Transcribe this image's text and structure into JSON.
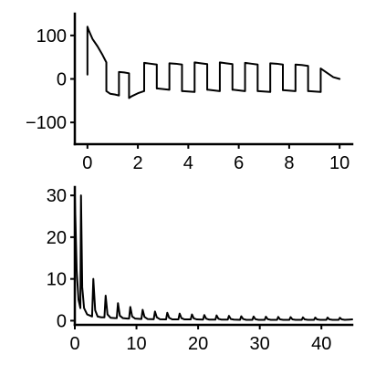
{
  "chart_data": [
    {
      "type": "line",
      "title": "",
      "xlabel": "",
      "ylabel": "",
      "xlim": [
        -0.5,
        10.5
      ],
      "ylim": [
        -150,
        150
      ],
      "xticks": [
        0,
        2,
        4,
        6,
        8,
        10
      ],
      "yticks": [
        100,
        0,
        -100
      ],
      "ytick_labels": [
        "100",
        "0",
        "−100"
      ],
      "grid": false,
      "series": [
        {
          "color": "#000000",
          "x": [
            0.0,
            0.0,
            0.05,
            0.2,
            0.4,
            0.6,
            0.75,
            0.75,
            0.9,
            1.1,
            1.25,
            1.25,
            1.45,
            1.65,
            1.65,
            1.75,
            2.0,
            2.25,
            2.25,
            2.5,
            2.75,
            2.75,
            2.8,
            3.25,
            3.25,
            3.5,
            3.75,
            3.75,
            3.8,
            4.25,
            4.25,
            4.5,
            4.75,
            4.75,
            4.8,
            5.25,
            5.25,
            5.5,
            5.75,
            5.75,
            5.8,
            6.25,
            6.25,
            6.5,
            6.75,
            6.75,
            6.8,
            7.25,
            7.25,
            7.5,
            7.75,
            7.75,
            7.8,
            8.25,
            8.25,
            8.5,
            8.75,
            8.75,
            8.8,
            9.25,
            9.25,
            9.5,
            9.75,
            10.0
          ],
          "y": [
            10,
            120,
            112,
            92,
            75,
            55,
            38,
            -28,
            -34,
            -36,
            -38,
            16,
            15,
            13,
            -44,
            -40,
            -33,
            -28,
            37,
            35,
            33,
            -22,
            -22,
            -25,
            36,
            35,
            33,
            -28,
            -28,
            -30,
            38,
            36,
            34,
            -25,
            -25,
            -28,
            38,
            36,
            34,
            -25,
            -25,
            -28,
            37,
            35,
            33,
            -28,
            -28,
            -30,
            36,
            35,
            33,
            -26,
            -26,
            -28,
            33,
            32,
            30,
            -28,
            -28,
            -30,
            24,
            14,
            4,
            0
          ]
        }
      ]
    },
    {
      "type": "line",
      "title": "",
      "xlabel": "",
      "ylabel": "",
      "xlim": [
        0,
        45
      ],
      "ylim": [
        -1,
        32
      ],
      "xticks": [
        0,
        10,
        20,
        30,
        40
      ],
      "yticks": [
        30,
        20,
        10,
        0
      ],
      "grid": false,
      "series": [
        {
          "color": "#000000",
          "x": [
            0.0,
            0.3,
            0.6,
            0.9,
            1.0,
            1.2,
            1.5,
            2.0,
            2.5,
            2.8,
            3.0,
            3.3,
            3.7,
            4.3,
            4.8,
            5.0,
            5.3,
            5.8,
            6.5,
            6.8,
            7.0,
            7.3,
            7.8,
            8.5,
            8.8,
            9.0,
            9.3,
            9.8,
            10.8,
            11.0,
            11.3,
            11.8,
            12.8,
            13.0,
            13.3,
            13.8,
            14.8,
            15.0,
            15.3,
            15.8,
            16.8,
            17.0,
            17.3,
            17.8,
            18.8,
            19.0,
            19.3,
            19.8,
            20.8,
            21.0,
            21.3,
            21.8,
            22.8,
            23.0,
            23.3,
            23.8,
            24.8,
            25.0,
            25.3,
            25.8,
            26.8,
            27.0,
            27.3,
            27.8,
            28.8,
            29.0,
            29.3,
            29.8,
            30.8,
            31.0,
            31.3,
            31.8,
            32.8,
            33.0,
            33.3,
            33.8,
            34.8,
            35.0,
            35.3,
            35.8,
            36.8,
            37.0,
            37.3,
            37.8,
            38.8,
            39.0,
            39.3,
            39.8,
            40.8,
            41.0,
            41.3,
            41.8,
            42.8,
            43.0,
            43.3,
            43.8,
            45.0
          ],
          "y": [
            30,
            12,
            5,
            3,
            30,
            8,
            3,
            1.5,
            1.2,
            1.0,
            10,
            2.5,
            1.0,
            0.8,
            0.8,
            6,
            1.5,
            0.7,
            0.6,
            0.6,
            4.2,
            1.2,
            0.6,
            0.5,
            0.5,
            3.3,
            1.0,
            0.5,
            0.4,
            2.6,
            0.9,
            0.4,
            0.35,
            2.2,
            0.8,
            0.35,
            0.3,
            1.9,
            0.7,
            0.3,
            0.3,
            1.7,
            0.6,
            0.3,
            0.3,
            1.5,
            0.55,
            0.3,
            0.25,
            1.35,
            0.5,
            0.25,
            0.25,
            1.25,
            0.45,
            0.25,
            0.25,
            1.15,
            0.4,
            0.25,
            0.2,
            1.05,
            0.4,
            0.2,
            0.2,
            1.0,
            0.35,
            0.2,
            0.2,
            0.95,
            0.35,
            0.2,
            0.2,
            0.9,
            0.3,
            0.2,
            0.2,
            0.85,
            0.3,
            0.2,
            0.2,
            0.8,
            0.3,
            0.2,
            0.2,
            0.75,
            0.3,
            0.2,
            0.2,
            0.75,
            0.3,
            0.2,
            0.2,
            0.7,
            0.3,
            0.2,
            0.3
          ]
        }
      ]
    }
  ]
}
